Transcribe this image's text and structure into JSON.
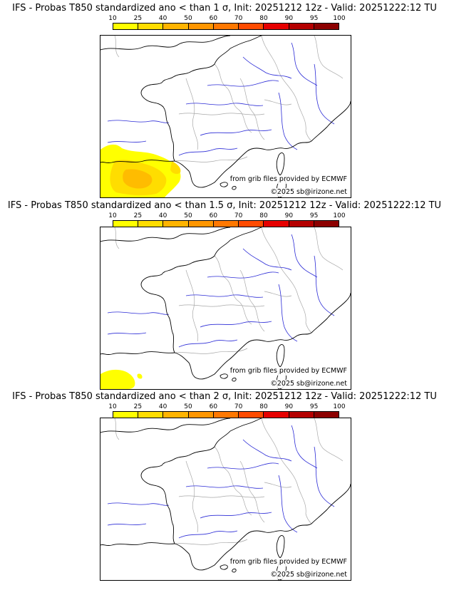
{
  "panels": [
    {
      "title": "IFS - Probas T850  standardized ano < than 1 σ, Init: 20251212 12z - Valid: 20251222:12 TU",
      "shading_level": "high"
    },
    {
      "title": "IFS - Probas T850  standardized ano < than 1.5 σ, Init: 20251212 12z - Valid: 20251222:12 TU",
      "shading_level": "low"
    },
    {
      "title": "IFS - Probas T850  standardized ano < than 2 σ, Init: 20251212 12z - Valid: 20251222:12 TU",
      "shading_level": "none"
    }
  ],
  "colorbar": {
    "ticks": [
      "10",
      "25",
      "40",
      "50",
      "60",
      "70",
      "80",
      "90",
      "95",
      "100"
    ],
    "colors": [
      "#ffff00",
      "#ffdd00",
      "#ffb400",
      "#ff9600",
      "#ff7800",
      "#ff4b00",
      "#e60000",
      "#b40000",
      "#8c0000"
    ]
  },
  "credits": {
    "source": "from grib files provided by ECMWF",
    "copyright": "©2025 sb@irizone.net"
  },
  "map_colors": {
    "coast": "#000000",
    "rivers": "#2b2bd6",
    "borders": "#a8a8a8"
  }
}
